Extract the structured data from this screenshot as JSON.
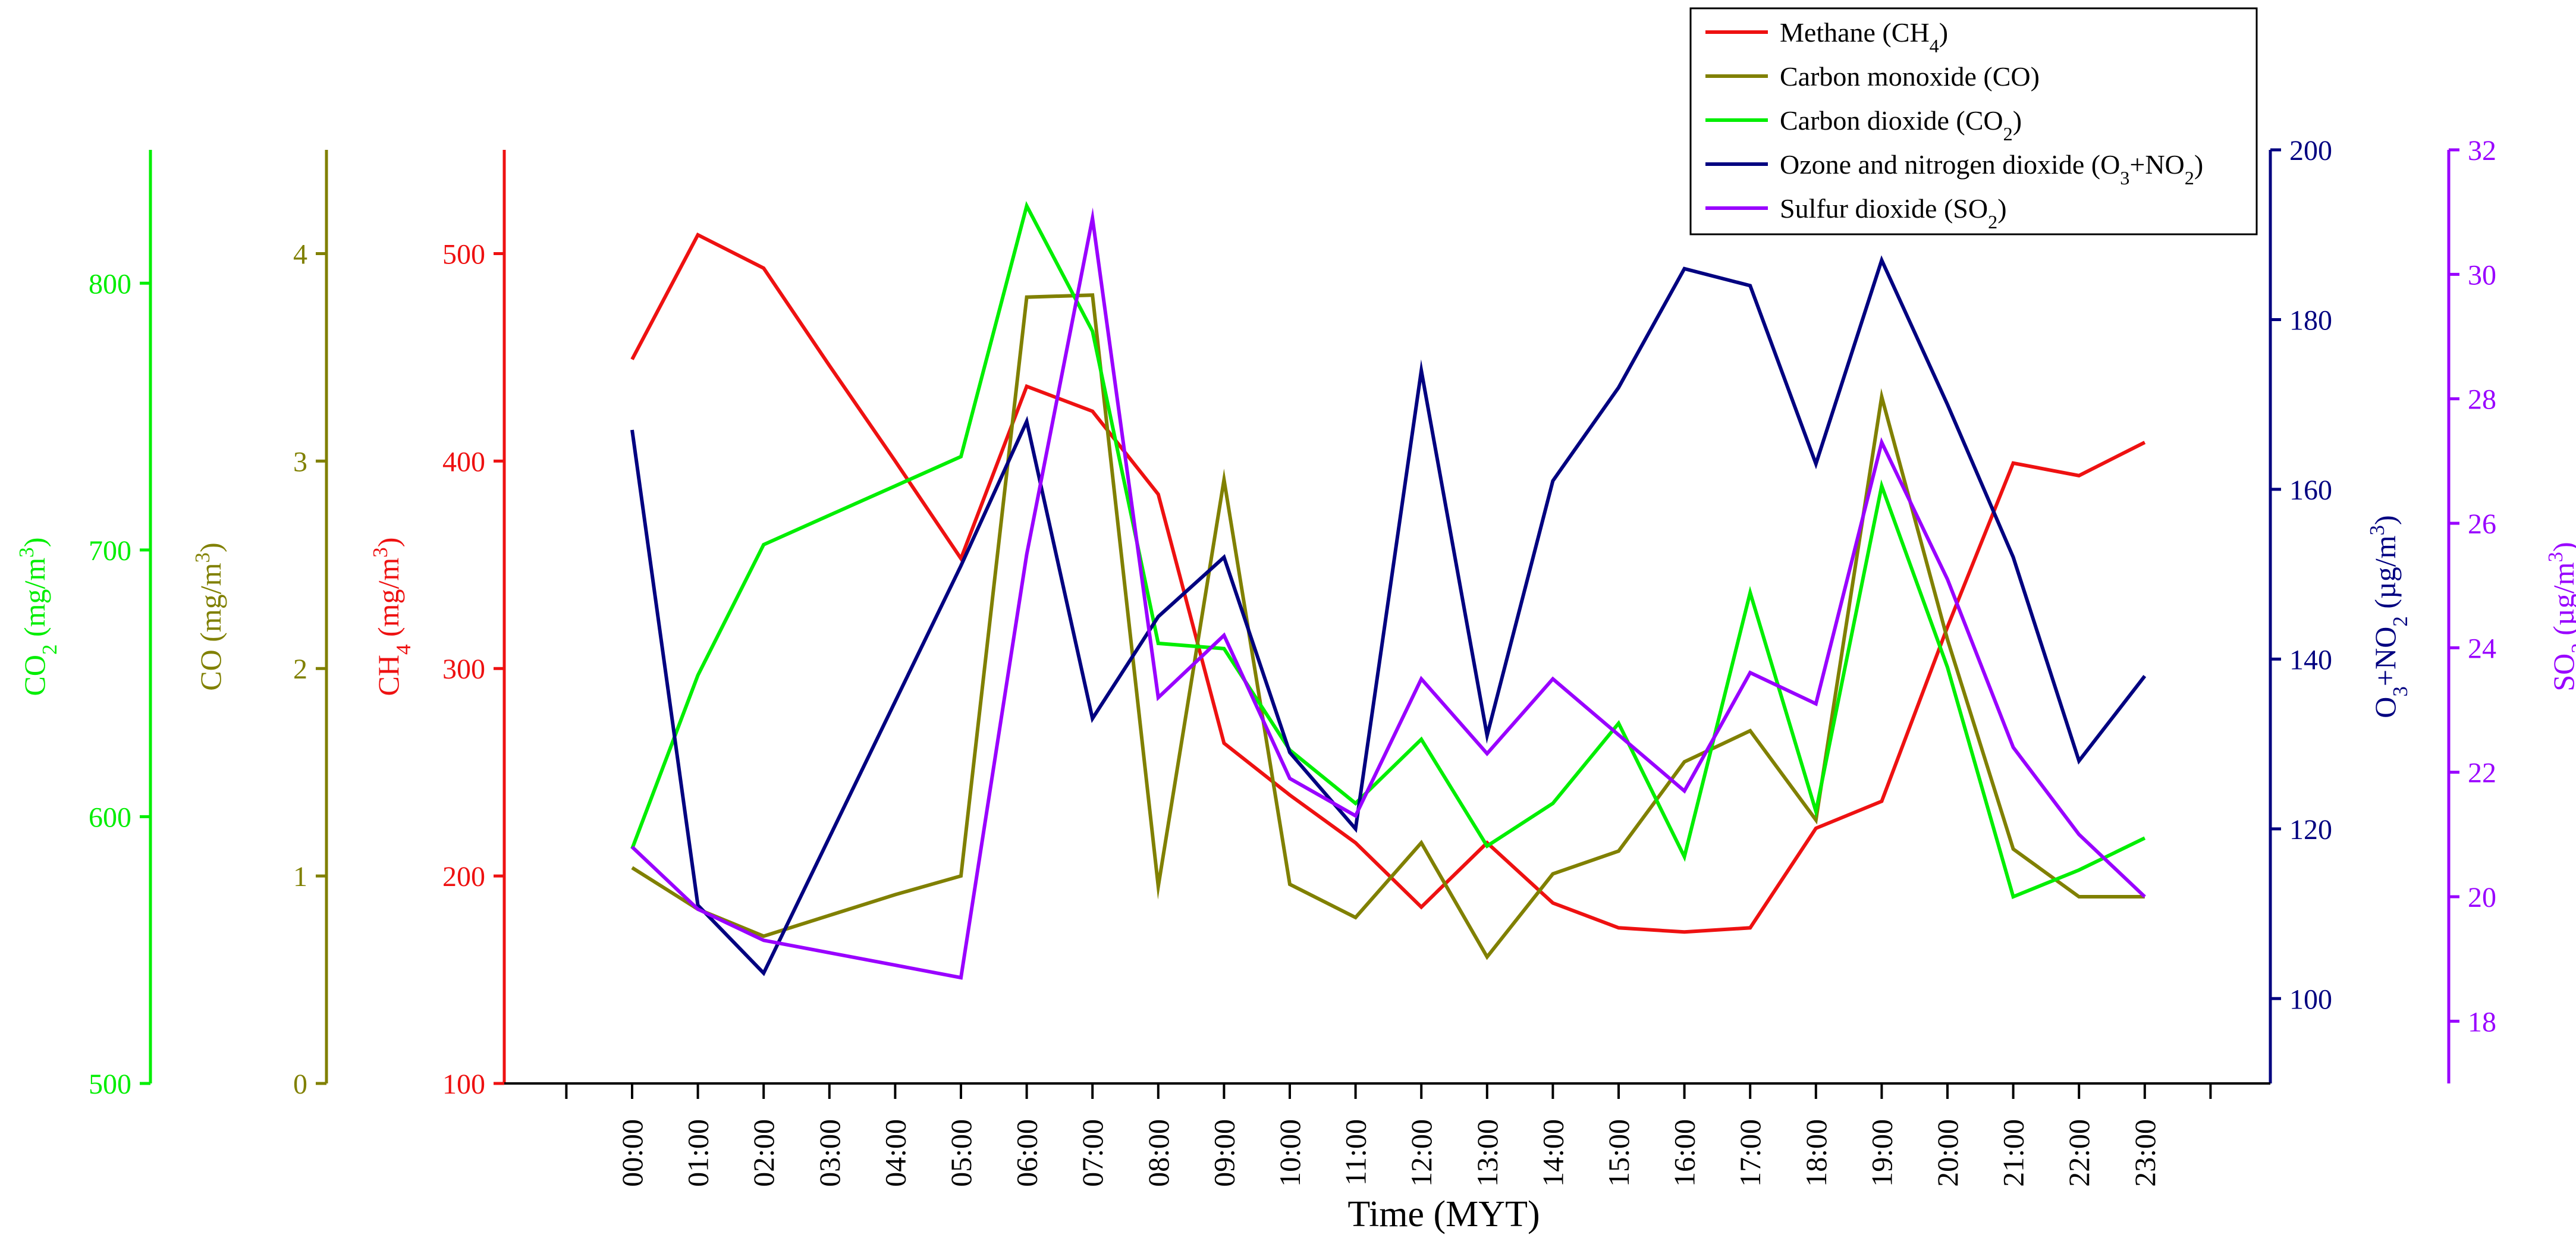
{
  "chart_data": {
    "type": "line",
    "xlabel": "Time (MYT)",
    "categories": [
      "00:00",
      "01:00",
      "02:00",
      "03:00",
      "04:00",
      "05:00",
      "06:00",
      "07:00",
      "08:00",
      "09:00",
      "10:00",
      "11:00",
      "12:00",
      "13:00",
      "14:00",
      "15:00",
      "16:00",
      "17:00",
      "18:00",
      "19:00",
      "20:00",
      "21:00",
      "22:00",
      "23:00"
    ],
    "axes": [
      {
        "id": "co2",
        "base": "CO",
        "sub": "2",
        "unit": " (mg/m",
        "sup": "3",
        "close": ")",
        "color": "#00ee00",
        "side": "left",
        "min": 500,
        "max": 850,
        "ticks": [
          500,
          600,
          700,
          800
        ]
      },
      {
        "id": "co",
        "base": "CO",
        "sub": "",
        "unit": " (mg/m",
        "sup": "3",
        "close": ")",
        "color": "#808000",
        "side": "left",
        "min": 0,
        "max": 4.5,
        "ticks": [
          0,
          1,
          2,
          3,
          4
        ]
      },
      {
        "id": "ch4",
        "base": "CH",
        "sub": "4",
        "unit": " (mg/m",
        "sup": "3",
        "close": ")",
        "color": "#ee1111",
        "side": "left",
        "min": 100,
        "max": 550,
        "ticks": [
          100,
          200,
          300,
          400,
          500
        ]
      },
      {
        "id": "o3no2",
        "base": "O",
        "sub": "3",
        "mid": "+NO",
        "sub2": "2",
        "unit": " (µg/m",
        "sup": "3",
        "close": ")",
        "color": "#000080",
        "side": "right",
        "min": 90,
        "max": 200,
        "ticks": [
          100,
          120,
          140,
          160,
          180,
          200
        ]
      },
      {
        "id": "so2",
        "base": "SO",
        "sub": "2",
        "unit": " (µg/m",
        "sup": "3",
        "close": ")",
        "color": "#9900ff",
        "side": "right",
        "min": 17,
        "max": 32,
        "ticks": [
          18,
          20,
          22,
          24,
          26,
          28,
          30,
          32
        ]
      }
    ],
    "series": [
      {
        "name": "Methane",
        "formula_base": "CH",
        "formula_sub": "4",
        "axis": "ch4",
        "color": "#ee1111",
        "values": [
          449,
          509,
          493,
          446,
          400,
          353,
          436,
          424,
          384,
          264,
          239,
          216,
          185,
          216,
          187,
          175,
          173,
          175,
          223,
          236,
          320,
          399,
          393,
          409
        ]
      },
      {
        "name": "Carbon monoxide",
        "formula_base": "CO",
        "formula_sub": "",
        "axis": "co",
        "color": "#808000",
        "values": [
          1.04,
          0.84,
          0.71,
          0.81,
          0.91,
          1.0,
          3.79,
          3.8,
          0.95,
          2.91,
          0.96,
          0.8,
          1.16,
          0.61,
          1.01,
          1.12,
          1.55,
          1.7,
          1.27,
          3.31,
          2.14,
          1.13,
          0.9,
          0.9
        ]
      },
      {
        "name": "Carbon dioxide",
        "formula_base": "CO",
        "formula_sub": "2",
        "axis": "co2",
        "color": "#00ee00",
        "values": [
          588,
          653,
          702,
          713,
          724,
          735,
          829,
          782,
          665,
          663,
          625,
          605,
          629,
          589,
          605,
          635,
          585,
          684,
          602,
          724,
          656,
          570,
          580,
          592
        ]
      },
      {
        "name": "Ozone and nitrogen dioxide",
        "formula_base": "O",
        "formula_sub": "3",
        "formula_mid": "+NO",
        "formula_sub2": "2",
        "axis": "o3no2",
        "color": "#000080",
        "values": [
          167,
          111,
          103,
          119,
          135,
          151,
          168,
          133,
          145,
          152,
          129,
          120,
          174,
          131,
          161,
          172,
          186,
          184,
          163,
          187,
          170,
          152,
          128,
          138
        ]
      },
      {
        "name": "Sulfur dioxide",
        "formula_base": "SO",
        "formula_sub": "2",
        "axis": "so2",
        "color": "#9900ff",
        "values": [
          20.8,
          19.8,
          19.3,
          19.1,
          18.9,
          18.7,
          25.5,
          30.9,
          23.2,
          24.2,
          21.9,
          21.3,
          23.5,
          22.3,
          23.5,
          22.6,
          21.7,
          23.6,
          23.1,
          27.3,
          25.1,
          22.4,
          21.0,
          20.0
        ]
      }
    ]
  }
}
